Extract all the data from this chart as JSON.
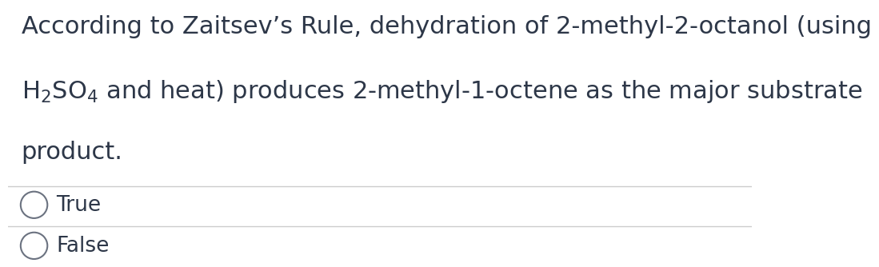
{
  "background_color": "#ffffff",
  "text_color": "#2d3748",
  "question_line1": "According to Zaitsev’s Rule, dehydration of 2-methyl-2-octanol (using",
  "question_line3": "product.",
  "options": [
    "True",
    "False"
  ],
  "divider_color": "#cccccc",
  "circle_color": "#6b7280",
  "font_size_question": 22,
  "font_size_options": 19,
  "figwidth": 12.0,
  "figheight": 3.79
}
